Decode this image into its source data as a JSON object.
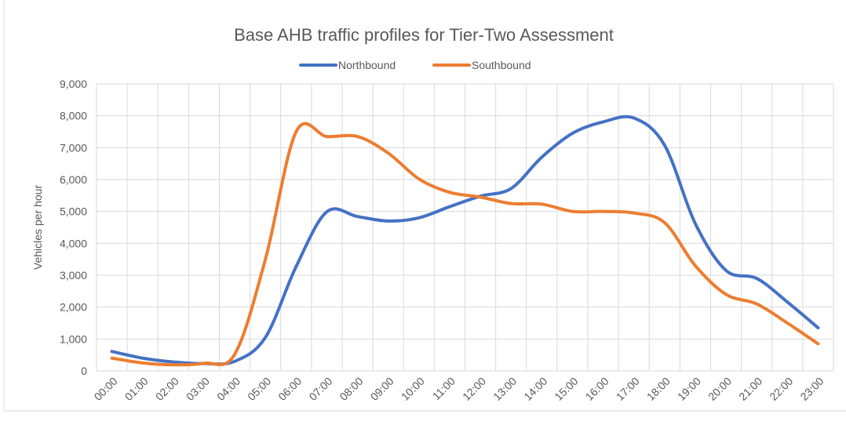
{
  "chart_data": {
    "type": "line",
    "title": "Base AHB traffic profiles for Tier-Two Assessment",
    "y_label": "Vehicles per hour",
    "categories": [
      "00:00",
      "01:00",
      "02:00",
      "03:00",
      "04:00",
      "05:00",
      "06:00",
      "07:00",
      "08:00",
      "09:00",
      "10:00",
      "11:00",
      "12:00",
      "13:00",
      "14:00",
      "15:00",
      "16:00",
      "17:00",
      "18:00",
      "19:00",
      "20:00",
      "21:00",
      "22:00",
      "23:00"
    ],
    "series": [
      {
        "name": "Northbound",
        "color": "#4472c4",
        "values": [
          610,
          400,
          280,
          230,
          300,
          1050,
          3270,
          4990,
          4840,
          4700,
          4800,
          5150,
          5480,
          5720,
          6700,
          7450,
          7810,
          7930,
          7080,
          4620,
          3150,
          2900,
          2160,
          1350
        ]
      },
      {
        "name": "Southbound",
        "color": "#ed7d31",
        "values": [
          400,
          250,
          190,
          240,
          520,
          3500,
          7500,
          7350,
          7350,
          6830,
          6020,
          5600,
          5450,
          5250,
          5230,
          5000,
          5000,
          4950,
          4650,
          3300,
          2400,
          2100,
          1500,
          850
        ]
      }
    ],
    "ylim": [
      0,
      9000
    ],
    "yticks": [
      0,
      {
        "value": 1000,
        "label": "1,000"
      },
      {
        "value": 2000,
        "label": "2,000"
      },
      {
        "value": 3000,
        "label": "3,000"
      },
      {
        "value": 4000,
        "label": "4,000"
      },
      {
        "value": 5000,
        "label": "5,000"
      },
      {
        "value": 6000,
        "label": "6,000"
      },
      {
        "value": 7000,
        "label": "7,000"
      },
      {
        "value": 8000,
        "label": "8,000"
      },
      {
        "value": 9000,
        "label": "9,000"
      }
    ],
    "grid": true,
    "smooth": true,
    "legend": "top"
  }
}
